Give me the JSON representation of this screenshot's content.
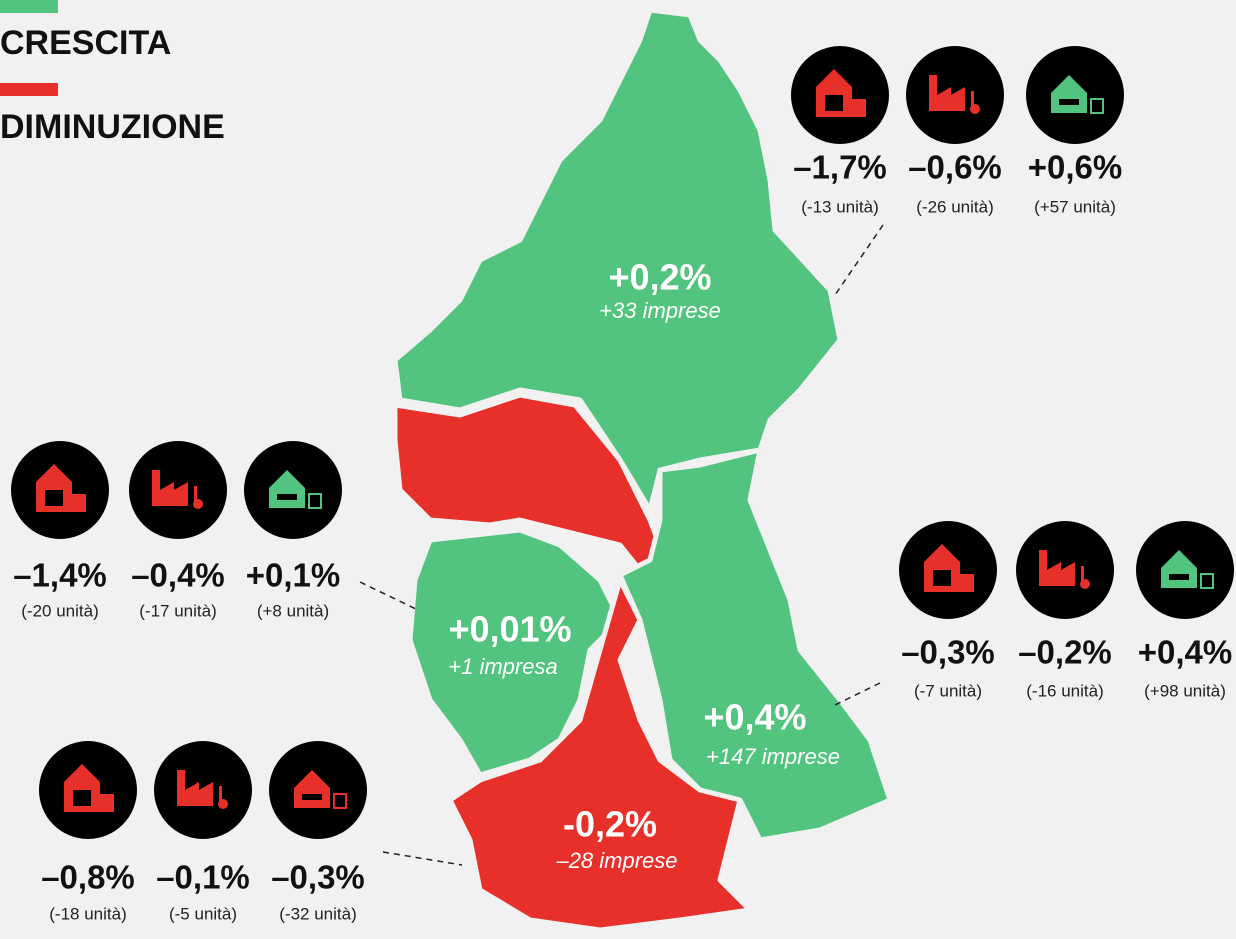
{
  "legend": [
    {
      "label": "CRESCITA",
      "color": "#52c47f"
    },
    {
      "label": "DIMINUZIONE",
      "color": "#e8302a"
    }
  ],
  "regions": [
    {
      "change": "+0,2%",
      "note": "+33 imprese",
      "color": "#52c47f",
      "stats": [
        {
          "value": "–1,7%",
          "units": "(-13 unità)",
          "color": "#e8302a"
        },
        {
          "value": "–0,6%",
          "units": "(-26 unità)",
          "color": "#e8302a"
        },
        {
          "value": "+0,6%",
          "units": "(+57 unità)",
          "color": "#52c47f"
        }
      ]
    },
    {
      "change": "+0,01%",
      "note": "+1 impresa",
      "color": "#52c47f",
      "stats": [
        {
          "value": "–1,4%",
          "units": "(-20 unità)",
          "color": "#e8302a"
        },
        {
          "value": "–0,4%",
          "units": "(-17 unità)",
          "color": "#e8302a"
        },
        {
          "value": "+0,1%",
          "units": "(+8 unità)",
          "color": "#52c47f"
        }
      ]
    },
    {
      "change": "+0,4%",
      "note": "+147 imprese",
      "color": "#52c47f",
      "stats": [
        {
          "value": "–0,3%",
          "units": "(-7 unità)",
          "color": "#e8302a"
        },
        {
          "value": "–0,2%",
          "units": "(-16 unità)",
          "color": "#e8302a"
        },
        {
          "value": "+0,4%",
          "units": "(+98 unità)",
          "color": "#52c47f"
        }
      ]
    },
    {
      "change": "-0,2%",
      "note": "–28 imprese",
      "color": "#e8302a",
      "stats": [
        {
          "value": "–0,8%",
          "units": "(-18 unità)",
          "color": "#e8302a"
        },
        {
          "value": "–0,1%",
          "units": "(-5 unità)",
          "color": "#e8302a"
        },
        {
          "value": "–0,3%",
          "units": "(-32 unità)",
          "color": "#e8302a"
        }
      ]
    }
  ]
}
